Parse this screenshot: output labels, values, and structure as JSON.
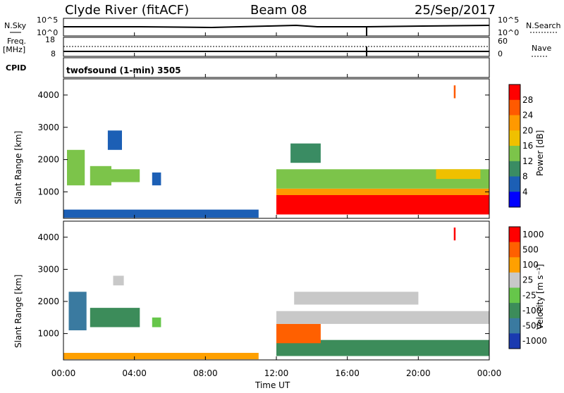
{
  "header": {
    "station": "Clyde River (fitACF)",
    "beam": "Beam 08",
    "date": "25/Sep/2017"
  },
  "top_panels": {
    "nsky_label": "N.Sky",
    "nsky_ticks": [
      "10^5",
      "10^0"
    ],
    "nsearch_label": "N.Search",
    "nsearch_ticks": [
      "10^5",
      "10^0"
    ],
    "freq_label": "Freq.",
    "freq_unit": "[MHz]",
    "freq_ticks": [
      "18",
      "8"
    ],
    "nave_label": "Nave",
    "nave_ticks": [
      "60",
      "0"
    ],
    "cpid_label": "CPID",
    "cpid_text": "twofsound (1-min) 3505"
  },
  "chart_data": [
    {
      "type": "heatmap",
      "title": "",
      "xlabel": "Time UT",
      "ylabel": "Slant Range [km]",
      "x_ticks": [
        "00:00",
        "04:00",
        "08:00",
        "12:00",
        "16:00",
        "20:00",
        "00:00"
      ],
      "y_ticks": [
        "1000",
        "2000",
        "3000",
        "4000"
      ],
      "ylim": [
        180,
        4500
      ],
      "colorbar_label": "Power [dB]",
      "colorbar_ticks": [
        "4",
        "8",
        "12",
        "16",
        "20",
        "24",
        "28"
      ],
      "colors": [
        "#0000ff",
        "#1c5fb5",
        "#3a8c63",
        "#7cc44a",
        "#f0c000",
        "#ff9900",
        "#ff5a00",
        "#ff0000"
      ],
      "regions": [
        {
          "t": [
            0.2,
            1.2
          ],
          "r": [
            1200,
            2300
          ],
          "level": 3
        },
        {
          "t": [
            1.5,
            2.7
          ],
          "r": [
            1200,
            1800
          ],
          "level": 3
        },
        {
          "t": [
            2.7,
            4.3
          ],
          "r": [
            1300,
            1700
          ],
          "level": 3
        },
        {
          "t": [
            2.5,
            3.3
          ],
          "r": [
            2300,
            2900
          ],
          "level": 1
        },
        {
          "t": [
            5.0,
            5.5
          ],
          "r": [
            1200,
            1600
          ],
          "level": 1
        },
        {
          "t": [
            0.0,
            11.0
          ],
          "r": [
            200,
            450
          ],
          "level": 1
        },
        {
          "t": [
            12.0,
            24.0
          ],
          "r": [
            300,
            900
          ],
          "level": 7
        },
        {
          "t": [
            12.0,
            24.0
          ],
          "r": [
            900,
            1100
          ],
          "level": 5
        },
        {
          "t": [
            12.0,
            24.0
          ],
          "r": [
            1100,
            1700
          ],
          "level": 3
        },
        {
          "t": [
            12.8,
            14.5
          ],
          "r": [
            1900,
            2500
          ],
          "level": 2
        },
        {
          "t": [
            21.0,
            23.5
          ],
          "r": [
            1400,
            1700
          ],
          "level": 4
        },
        {
          "t": [
            22.0,
            22.1
          ],
          "r": [
            3900,
            4300
          ],
          "level": 6
        }
      ]
    },
    {
      "type": "heatmap",
      "title": "",
      "xlabel": "Time UT",
      "ylabel": "Slant Range [km]",
      "x_ticks": [
        "00:00",
        "04:00",
        "08:00",
        "12:00",
        "16:00",
        "20:00",
        "00:00"
      ],
      "y_ticks": [
        "1000",
        "2000",
        "3000",
        "4000"
      ],
      "ylim": [
        180,
        4500
      ],
      "colorbar_label": "Velocity [m s⁻¹]",
      "colorbar_ticks": [
        "1000",
        "500",
        "100",
        "25",
        "-25",
        "-100",
        "-500",
        "-1000"
      ],
      "colors": [
        "#1a3ab0",
        "#3a7aa0",
        "#3c8c5a",
        "#66c64a",
        "#c8c8c8",
        "#ffa000",
        "#ff6000",
        "#ff0000"
      ],
      "regions": [
        {
          "t": [
            0.3,
            1.3
          ],
          "r": [
            1100,
            2300
          ],
          "level": 1
        },
        {
          "t": [
            1.5,
            4.3
          ],
          "r": [
            1200,
            1800
          ],
          "level": 2
        },
        {
          "t": [
            2.8,
            3.4
          ],
          "r": [
            2500,
            2800
          ],
          "level": 4
        },
        {
          "t": [
            5.0,
            5.5
          ],
          "r": [
            1200,
            1500
          ],
          "level": 3
        },
        {
          "t": [
            0.0,
            11.0
          ],
          "r": [
            200,
            400
          ],
          "level": 5
        },
        {
          "t": [
            12.0,
            24.0
          ],
          "r": [
            300,
            800
          ],
          "level": 2
        },
        {
          "t": [
            12.0,
            14.5
          ],
          "r": [
            700,
            1300
          ],
          "level": 6
        },
        {
          "t": [
            12.0,
            24.0
          ],
          "r": [
            1300,
            1700
          ],
          "level": 4
        },
        {
          "t": [
            13.0,
            20.0
          ],
          "r": [
            1900,
            2300
          ],
          "level": 4
        },
        {
          "t": [
            22.0,
            22.1
          ],
          "r": [
            3900,
            4300
          ],
          "level": 7
        }
      ]
    }
  ]
}
